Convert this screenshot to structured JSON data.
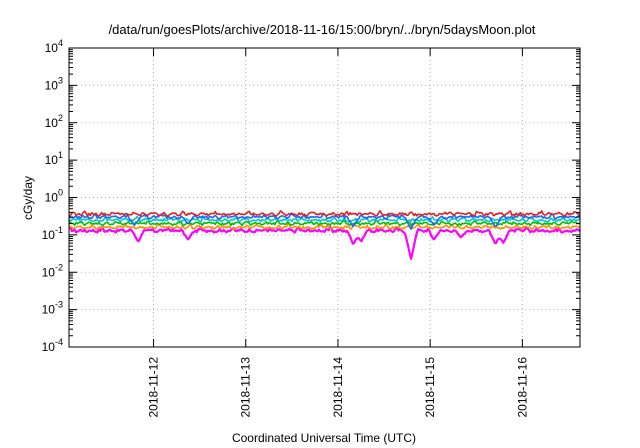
{
  "chart_data": {
    "type": "line",
    "title": "/data/run/goesPlots/archive/2018-11-16/15:00/bryn/../bryn/5daysMoon.plot",
    "xlabel": "Coordinated Universal Time (UTC)",
    "ylabel": "cGy/day",
    "yscale": "log",
    "ylim": [
      0.0001,
      10000
    ],
    "y_ticks": [
      {
        "value": 0.0001,
        "base": "10",
        "exp": "-4"
      },
      {
        "value": 0.001,
        "base": "10",
        "exp": "-3"
      },
      {
        "value": 0.01,
        "base": "10",
        "exp": "-2"
      },
      {
        "value": 0.1,
        "base": "10",
        "exp": "-1"
      },
      {
        "value": 1,
        "base": "10",
        "exp": "0"
      },
      {
        "value": 10,
        "base": "10",
        "exp": "1"
      },
      {
        "value": 100,
        "base": "10",
        "exp": "2"
      },
      {
        "value": 1000,
        "base": "10",
        "exp": "3"
      },
      {
        "value": 10000,
        "base": "10",
        "exp": "4"
      }
    ],
    "xlim": [
      "2018-11-11 02:00",
      "2018-11-16 15:00"
    ],
    "x_ticks": [
      "2018-11-12",
      "2018-11-13",
      "2018-11-14",
      "2018-11-15",
      "2018-11-16"
    ],
    "grid": true,
    "series": [
      {
        "color": "#ff00ff",
        "base": 0.13,
        "dips": [
          {
            "t": "2018-11-11 20:00",
            "v": 0.065
          },
          {
            "t": "2018-11-12 09:00",
            "v": 0.075
          },
          {
            "t": "2018-11-14 04:00",
            "v": 0.055
          },
          {
            "t": "2018-11-14 06:00",
            "v": 0.065
          },
          {
            "t": "2018-11-14 19:00",
            "v": 0.022
          },
          {
            "t": "2018-11-15 01:00",
            "v": 0.075
          },
          {
            "t": "2018-11-15 08:00",
            "v": 0.085
          },
          {
            "t": "2018-11-15 17:00",
            "v": 0.055
          },
          {
            "t": "2018-11-15 19:00",
            "v": 0.06
          }
        ]
      },
      {
        "color": "#ff8c00",
        "base": 0.16,
        "dips": []
      },
      {
        "color": "#00c000",
        "base": 0.2,
        "dips": []
      },
      {
        "color": "#00c8c8",
        "base": 0.25,
        "dips": []
      },
      {
        "color": "#1e64ff",
        "base": 0.3,
        "dips": [
          {
            "t": "2018-11-11 19:00",
            "v": 0.18
          },
          {
            "t": "2018-11-12 09:00",
            "v": 0.2
          },
          {
            "t": "2018-11-14 04:00",
            "v": 0.16
          },
          {
            "t": "2018-11-14 19:00",
            "v": 0.14
          },
          {
            "t": "2018-11-15 01:00",
            "v": 0.18
          },
          {
            "t": "2018-11-15 17:00",
            "v": 0.16
          }
        ]
      },
      {
        "color": "#e02020",
        "base": 0.36,
        "dips": []
      }
    ]
  }
}
